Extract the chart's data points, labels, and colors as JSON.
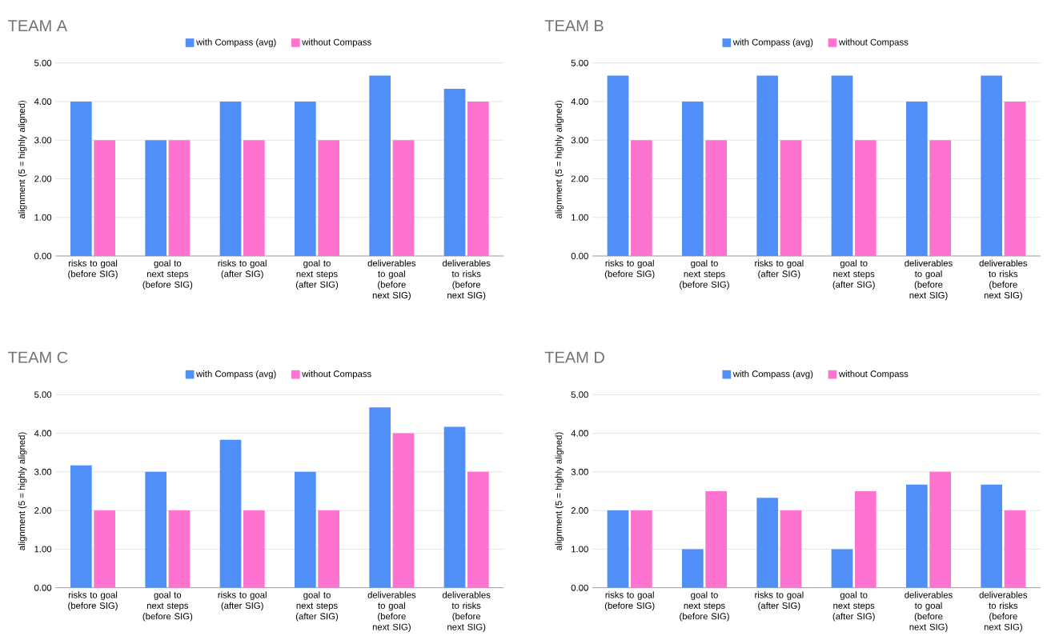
{
  "chart_data": [
    {
      "type": "bar",
      "title": "TEAM A",
      "ylabel": "alignment (5 = highly aligned)",
      "categories": [
        "risks to goal (before SIG)",
        "goal to next steps (before SIG)",
        "risks to goal (after SIG)",
        "goal to next steps (after SIG)",
        "deliverables to goal (before next SIG)",
        "deliverables to risks (before next SIG)"
      ],
      "series": [
        {
          "name": "with Compass (avg)",
          "color": "#4f8ff7",
          "values": [
            4,
            3,
            4,
            4,
            4.67,
            4.33
          ]
        },
        {
          "name": "without Compass",
          "color": "#ff73d0",
          "values": [
            3,
            3,
            3,
            3,
            3,
            4
          ]
        }
      ],
      "ylim": [
        0,
        5
      ],
      "yticks": [
        {
          "value": 0,
          "label": "0.00"
        },
        {
          "value": 1,
          "label": "1.00"
        },
        {
          "value": 2,
          "label": "2.00"
        },
        {
          "value": 3,
          "label": "3.00"
        },
        {
          "value": 4,
          "label": "4.00"
        },
        {
          "value": 5,
          "label": "5.00"
        }
      ],
      "grid": "y",
      "legend": "top"
    },
    {
      "type": "bar",
      "title": "TEAM B",
      "ylabel": "alignment (5 = highly aligned)",
      "categories": [
        "risks to goal (before SIG)",
        "goal to next steps (before SIG)",
        "risks to goal (after SIG)",
        "goal to next steps (after SIG)",
        "deliverables to goal (before next SIG)",
        "deliverables to risks (before next SIG)"
      ],
      "series": [
        {
          "name": "with Compass (avg)",
          "color": "#4f8ff7",
          "values": [
            4.67,
            4,
            4.67,
            4.67,
            4,
            4.67
          ]
        },
        {
          "name": "without Compass",
          "color": "#ff73d0",
          "values": [
            3,
            3,
            3,
            3,
            3,
            4
          ]
        }
      ],
      "ylim": [
        0,
        5
      ],
      "yticks": [
        {
          "value": 0,
          "label": "0.00"
        },
        {
          "value": 1,
          "label": "1.00"
        },
        {
          "value": 2,
          "label": "2.00"
        },
        {
          "value": 3,
          "label": "3.00"
        },
        {
          "value": 4,
          "label": "4.00"
        },
        {
          "value": 5,
          "label": "5.00"
        }
      ],
      "grid": "y",
      "legend": "top"
    },
    {
      "type": "bar",
      "title": "TEAM C",
      "ylabel": "alignment (5 = highly aligned)",
      "categories": [
        "risks to goal (before SIG)",
        "goal to next steps (before SIG)",
        "risks to goal (after SIG)",
        "goal to next steps (after SIG)",
        "deliverables to goal (before next SIG)",
        "deliverables to risks (before next SIG)"
      ],
      "series": [
        {
          "name": "with Compass (avg)",
          "color": "#4f8ff7",
          "values": [
            3.17,
            3,
            3.83,
            3,
            4.67,
            4.17
          ]
        },
        {
          "name": "without Compass",
          "color": "#ff73d0",
          "values": [
            2,
            2,
            2,
            2,
            4,
            3
          ]
        }
      ],
      "ylim": [
        0,
        5
      ],
      "yticks": [
        {
          "value": 0,
          "label": "0.00"
        },
        {
          "value": 1,
          "label": "1.00"
        },
        {
          "value": 2,
          "label": "2.00"
        },
        {
          "value": 3,
          "label": "3.00"
        },
        {
          "value": 4,
          "label": "4.00"
        },
        {
          "value": 5,
          "label": "5.00"
        }
      ],
      "grid": "y",
      "legend": "top"
    },
    {
      "type": "bar",
      "title": "TEAM D",
      "ylabel": "alignment (5 = highly aligned)",
      "categories": [
        "risks to goal (before SIG)",
        "goal to next steps (before SIG)",
        "risks to goal (after SIG)",
        "goal to next steps (after SIG)",
        "deliverables to goal (before next SIG)",
        "deliverables to risks (before next SIG)"
      ],
      "series": [
        {
          "name": "with Compass (avg)",
          "color": "#4f8ff7",
          "values": [
            2,
            1,
            2.33,
            1,
            2.67,
            2.67
          ]
        },
        {
          "name": "without Compass",
          "color": "#ff73d0",
          "values": [
            2,
            2.5,
            2,
            2.5,
            3,
            2
          ]
        }
      ],
      "ylim": [
        0,
        5
      ],
      "yticks": [
        {
          "value": 0,
          "label": "0.00"
        },
        {
          "value": 1,
          "label": "1.00"
        },
        {
          "value": 2,
          "label": "2.00"
        },
        {
          "value": 3,
          "label": "3.00"
        },
        {
          "value": 4,
          "label": "4.00"
        },
        {
          "value": 5,
          "label": "5.00"
        }
      ],
      "grid": "y",
      "legend": "top"
    }
  ]
}
